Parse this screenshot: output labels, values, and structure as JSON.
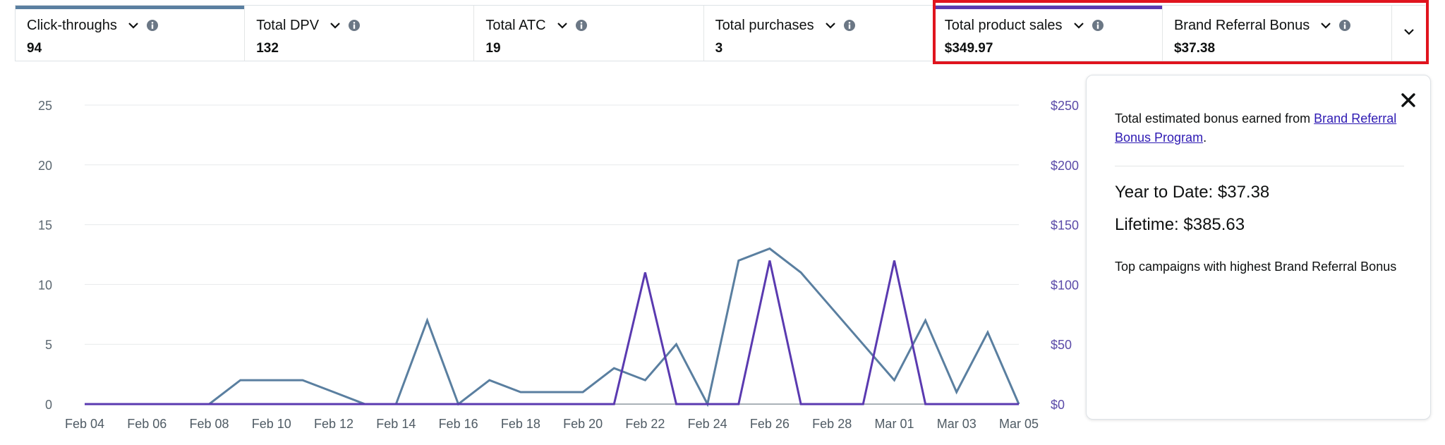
{
  "metrics": [
    {
      "label": "Click-throughs",
      "value": "94",
      "accent": "#5a7fa0"
    },
    {
      "label": "Total DPV",
      "value": "132",
      "accent": ""
    },
    {
      "label": "Total ATC",
      "value": "19",
      "accent": ""
    },
    {
      "label": "Total purchases",
      "value": "3",
      "accent": ""
    },
    {
      "label": "Total product sales",
      "value": "$349.97",
      "accent": "#5a3ab0"
    },
    {
      "label": "Brand Referral Bonus",
      "value": "$37.38",
      "accent": ""
    }
  ],
  "highlight_color": "#e0141e",
  "panel": {
    "desc_prefix": "Total estimated bonus earned from ",
    "desc_link": "Brand Referral Bonus Program",
    "desc_suffix": ".",
    "ytd": "Year to Date: $37.38",
    "lifetime": "Lifetime: $385.63",
    "top_campaigns": "Top campaigns with highest Brand Referral Bonus"
  },
  "chart_data": {
    "type": "line",
    "x": [
      "Feb 04",
      "Feb 05",
      "Feb 06",
      "Feb 07",
      "Feb 08",
      "Feb 09",
      "Feb 10",
      "Feb 11",
      "Feb 12",
      "Feb 13",
      "Feb 14",
      "Feb 15",
      "Feb 16",
      "Feb 17",
      "Feb 18",
      "Feb 19",
      "Feb 20",
      "Feb 21",
      "Feb 22",
      "Feb 23",
      "Feb 24",
      "Feb 25",
      "Feb 26",
      "Feb 27",
      "Feb 28",
      "Feb 29",
      "Mar 01",
      "Mar 02",
      "Mar 03",
      "Mar 04",
      "Mar 05"
    ],
    "x_tick_labels": [
      "Feb 04",
      "Feb 06",
      "Feb 08",
      "Feb 10",
      "Feb 12",
      "Feb 14",
      "Feb 16",
      "Feb 18",
      "Feb 20",
      "Feb 22",
      "Feb 24",
      "Feb 26",
      "Feb 28",
      "Mar 01",
      "Mar 03",
      "Mar 05"
    ],
    "left_axis": {
      "ticks": [
        "0",
        "5",
        "10",
        "15",
        "20",
        "25"
      ],
      "ylim": [
        0,
        25
      ]
    },
    "right_axis": {
      "ticks": [
        "$0",
        "$50",
        "$100",
        "$150",
        "$200",
        "$250"
      ],
      "ylim": [
        0,
        250
      ]
    },
    "grid": true,
    "series": [
      {
        "name": "Click-throughs",
        "axis": "left",
        "color": "#5a7fa0",
        "values": [
          0,
          0,
          0,
          0,
          0,
          2,
          2,
          2,
          1,
          0,
          0,
          7,
          0,
          2,
          1,
          1,
          1,
          3,
          2,
          5,
          0,
          12,
          13,
          11,
          8,
          5,
          2,
          7,
          1,
          6,
          0
        ]
      },
      {
        "name": "Total product sales",
        "axis": "right",
        "color": "#5a3ab0",
        "values": [
          0,
          0,
          0,
          0,
          0,
          0,
          0,
          0,
          0,
          0,
          0,
          0,
          0,
          0,
          0,
          0,
          0,
          0,
          110,
          0,
          0,
          0,
          120,
          0,
          0,
          0,
          120,
          0,
          0,
          0,
          0
        ]
      }
    ]
  }
}
